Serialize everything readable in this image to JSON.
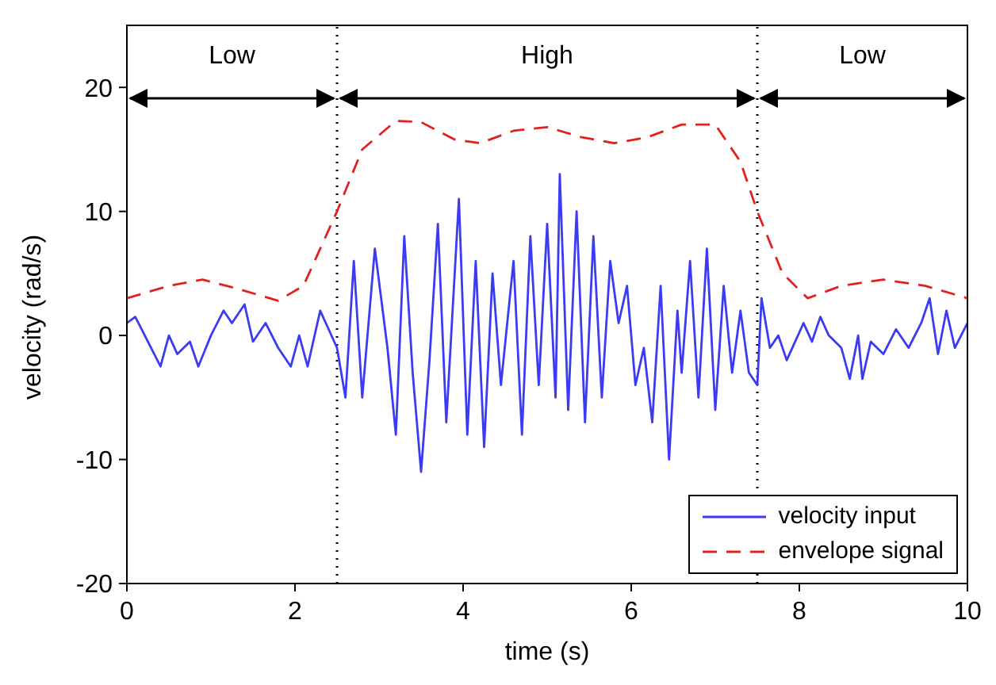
{
  "chart_data": {
    "type": "line",
    "xlabel": "time (s)",
    "ylabel": "velocity (rad/s)",
    "xlim": [
      0,
      10
    ],
    "ylim": [
      -20,
      25
    ],
    "xticks": [
      0,
      2,
      4,
      6,
      8,
      10
    ],
    "yticks": [
      -20,
      -10,
      0,
      10,
      20
    ],
    "grid": false,
    "legend": "bottom right",
    "marker": "none",
    "series": [
      {
        "name": "velocity input",
        "color": "#3b3bf5",
        "line_style": "solid",
        "x": [
          0,
          0.1,
          0.25,
          0.4,
          0.5,
          0.6,
          0.75,
          0.85,
          1.0,
          1.15,
          1.25,
          1.4,
          1.5,
          1.65,
          1.8,
          1.95,
          2.05,
          2.15,
          2.3,
          2.4,
          2.5,
          2.6,
          2.7,
          2.8,
          2.95,
          3.1,
          3.2,
          3.3,
          3.4,
          3.5,
          3.6,
          3.7,
          3.8,
          3.95,
          4.05,
          4.15,
          4.25,
          4.35,
          4.45,
          4.6,
          4.7,
          4.8,
          4.9,
          5.0,
          5.1,
          5.15,
          5.25,
          5.35,
          5.45,
          5.55,
          5.65,
          5.75,
          5.85,
          5.95,
          6.05,
          6.15,
          6.25,
          6.35,
          6.45,
          6.55,
          6.6,
          6.7,
          6.8,
          6.9,
          7.0,
          7.1,
          7.2,
          7.3,
          7.4,
          7.5,
          7.55,
          7.65,
          7.75,
          7.85,
          7.95,
          8.05,
          8.15,
          8.25,
          8.35,
          8.5,
          8.6,
          8.7,
          8.75,
          8.85,
          9.0,
          9.15,
          9.3,
          9.45,
          9.55,
          9.65,
          9.75,
          9.85,
          10
        ],
        "values": [
          1,
          1.5,
          -0.5,
          -2.5,
          0,
          -1.5,
          -0.5,
          -2.5,
          0,
          2,
          1,
          2.5,
          -0.5,
          1,
          -1,
          -2.5,
          0,
          -2.5,
          2,
          0.5,
          -1,
          -5,
          6,
          -5,
          7,
          -1,
          -8,
          8,
          -3,
          -11,
          -2,
          9,
          -7,
          11,
          -8,
          6,
          -9,
          5,
          -4,
          6,
          -8,
          8,
          -4,
          9,
          -5,
          13,
          -6,
          10,
          -7,
          8,
          -5,
          6,
          1,
          4,
          -4,
          -1,
          -7,
          4,
          -10,
          2,
          -3,
          6,
          -5,
          7,
          -6,
          4,
          -3,
          2,
          -3,
          -4,
          3,
          -1,
          0,
          -2,
          -0.5,
          1,
          -0.5,
          1.5,
          0,
          -1,
          -3.5,
          0,
          -3.5,
          -0.5,
          -1.5,
          0.5,
          -1,
          1,
          3,
          -1.5,
          2,
          -1,
          1
        ]
      },
      {
        "name": "envelope signal",
        "color": "#e32020",
        "line_style": "dashed",
        "x": [
          0,
          0.5,
          0.9,
          1.3,
          1.8,
          2.1,
          2.3,
          2.5,
          2.8,
          3.2,
          3.5,
          3.9,
          4.2,
          4.6,
          5.0,
          5.4,
          5.8,
          6.2,
          6.6,
          7.0,
          7.3,
          7.5,
          7.8,
          8.1,
          8.5,
          9.0,
          9.5,
          10
        ],
        "values": [
          3,
          4,
          4.5,
          3.8,
          2.8,
          4,
          7,
          10,
          15,
          17.3,
          17.2,
          15.8,
          15.5,
          16.5,
          16.8,
          16,
          15.5,
          16,
          17,
          17,
          14,
          10,
          5,
          3,
          4,
          4.5,
          4,
          3
        ]
      }
    ],
    "ref_lines": [
      {
        "axis": "x",
        "value": 2.5,
        "line_style": "dotted",
        "color": "#000000"
      },
      {
        "axis": "x",
        "value": 7.5,
        "line_style": "dotted",
        "color": "#000000"
      }
    ],
    "annotations": [
      "Low",
      "High",
      "Low"
    ]
  }
}
